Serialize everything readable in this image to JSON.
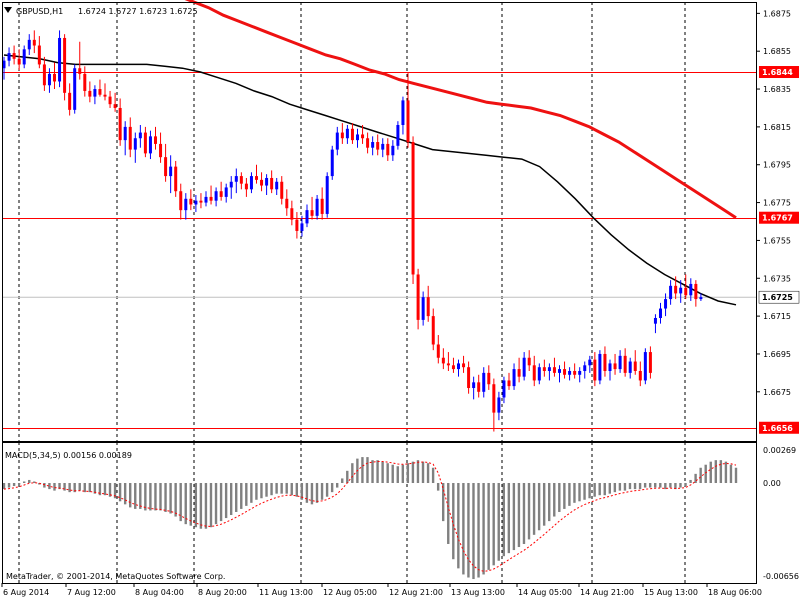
{
  "chart_data": {
    "type": "candlestick",
    "header": {
      "symbol": "GBPUSD,H1",
      "ohlc": "1.6724 1.6727 1.6723 1.6725"
    },
    "price_axis": {
      "ylim": [
        1.6649,
        1.6881
      ],
      "ticks": [
        "1.6875",
        "1.6855",
        "1.6835",
        "1.6815",
        "1.6795",
        "1.6775",
        "1.6755",
        "1.6735",
        "1.6715",
        "1.6695",
        "1.6675"
      ]
    },
    "time_axis": {
      "labels": [
        "6 Aug 2014",
        "7 Aug 12:00",
        "8 Aug 04:00",
        "8 Aug 20:00",
        "11 Aug 13:00",
        "12 Aug 05:00",
        "12 Aug 21:00",
        "13 Aug 13:00",
        "14 Aug 05:00",
        "14 Aug 21:00",
        "15 Aug 13:00",
        "18 Aug 06:00"
      ]
    },
    "horizontal_levels": [
      {
        "price": 1.6844,
        "label": "1.6844",
        "color": "#ff0000"
      },
      {
        "price": 1.6767,
        "label": "1.6767",
        "color": "#ff0000"
      },
      {
        "price": 1.6656,
        "label": "1.6656",
        "color": "#ff0000"
      }
    ],
    "current_price": {
      "price": 1.6725,
      "label": "1.6725"
    },
    "colors": {
      "bull": "#0000ff",
      "bear": "#ff0000",
      "slow_ma": "#ee1111",
      "fast_ma": "#000000",
      "macd_hist": "#808080",
      "macd_signal": "#ff0000"
    },
    "candles": [
      [
        1.6846,
        1.6852,
        1.684,
        1.685
      ],
      [
        1.685,
        1.6857,
        1.6847,
        1.6854
      ],
      [
        1.6854,
        1.6858,
        1.6848,
        1.6851
      ],
      [
        1.6851,
        1.6856,
        1.6845,
        1.6848
      ],
      [
        1.6848,
        1.6858,
        1.6846,
        1.6856
      ],
      [
        1.6856,
        1.6864,
        1.6853,
        1.6861
      ],
      [
        1.6861,
        1.6866,
        1.6854,
        1.6858
      ],
      [
        1.6858,
        1.6863,
        1.6846,
        1.6848
      ],
      [
        1.6848,
        1.6852,
        1.6834,
        1.6837
      ],
      [
        1.6837,
        1.6846,
        1.6833,
        1.6843
      ],
      [
        1.6843,
        1.6849,
        1.6835,
        1.6839
      ],
      [
        1.6839,
        1.6866,
        1.6836,
        1.6862
      ],
      [
        1.6862,
        1.6864,
        1.6829,
        1.6833
      ],
      [
        1.6833,
        1.6838,
        1.6821,
        1.6824
      ],
      [
        1.6824,
        1.6848,
        1.6822,
        1.6846
      ],
      [
        1.6846,
        1.686,
        1.684,
        1.6843
      ],
      [
        1.6843,
        1.6847,
        1.6831,
        1.6834
      ],
      [
        1.6834,
        1.6839,
        1.6828,
        1.6831
      ],
      [
        1.6831,
        1.6837,
        1.6827,
        1.6835
      ],
      [
        1.6835,
        1.684,
        1.6831,
        1.6832
      ],
      [
        1.6832,
        1.6838,
        1.6829,
        1.6831
      ],
      [
        1.6831,
        1.6834,
        1.6825,
        1.6827
      ],
      [
        1.6827,
        1.6833,
        1.6823,
        1.6825
      ],
      [
        1.6825,
        1.683,
        1.6805,
        1.6808
      ],
      [
        1.6808,
        1.6818,
        1.68,
        1.6815
      ],
      [
        1.6815,
        1.682,
        1.6799,
        1.6803
      ],
      [
        1.6803,
        1.6812,
        1.6796,
        1.6809
      ],
      [
        1.6809,
        1.6816,
        1.6804,
        1.6812
      ],
      [
        1.6812,
        1.6815,
        1.6799,
        1.6801
      ],
      [
        1.6801,
        1.6813,
        1.6798,
        1.681
      ],
      [
        1.681,
        1.6815,
        1.6803,
        1.6806
      ],
      [
        1.6806,
        1.6812,
        1.6796,
        1.6799
      ],
      [
        1.6799,
        1.6806,
        1.6786,
        1.6789
      ],
      [
        1.6789,
        1.68,
        1.678,
        1.6794
      ],
      [
        1.6794,
        1.6797,
        1.6778,
        1.6781
      ],
      [
        1.6781,
        1.6785,
        1.6766,
        1.6771
      ],
      [
        1.6771,
        1.678,
        1.6766,
        1.6777
      ],
      [
        1.6777,
        1.6782,
        1.6771,
        1.6774
      ],
      [
        1.6774,
        1.6779,
        1.677,
        1.6776
      ],
      [
        1.6776,
        1.678,
        1.6772,
        1.6775
      ],
      [
        1.6775,
        1.6781,
        1.6773,
        1.6778
      ],
      [
        1.6778,
        1.6784,
        1.6774,
        1.6776
      ],
      [
        1.6776,
        1.6783,
        1.6773,
        1.6781
      ],
      [
        1.6781,
        1.6786,
        1.6776,
        1.6778
      ],
      [
        1.6778,
        1.6785,
        1.6775,
        1.6783
      ],
      [
        1.6783,
        1.6789,
        1.6777,
        1.6786
      ],
      [
        1.6786,
        1.6793,
        1.678,
        1.6789
      ],
      [
        1.6789,
        1.6791,
        1.6782,
        1.6785
      ],
      [
        1.6785,
        1.6788,
        1.6778,
        1.6782
      ],
      [
        1.6782,
        1.6791,
        1.678,
        1.6789
      ],
      [
        1.6789,
        1.6795,
        1.6785,
        1.6787
      ],
      [
        1.6787,
        1.6791,
        1.6781,
        1.6784
      ],
      [
        1.6784,
        1.679,
        1.6779,
        1.6788
      ],
      [
        1.6788,
        1.6792,
        1.678,
        1.6782
      ],
      [
        1.6782,
        1.6788,
        1.6779,
        1.6786
      ],
      [
        1.6786,
        1.6789,
        1.6774,
        1.6777
      ],
      [
        1.6777,
        1.6782,
        1.6768,
        1.6772
      ],
      [
        1.6772,
        1.6776,
        1.6763,
        1.6766
      ],
      [
        1.6766,
        1.677,
        1.6756,
        1.676
      ],
      [
        1.676,
        1.6768,
        1.6757,
        1.6764
      ],
      [
        1.6764,
        1.6774,
        1.6762,
        1.6771
      ],
      [
        1.6771,
        1.6778,
        1.6766,
        1.6768
      ],
      [
        1.6768,
        1.6779,
        1.6766,
        1.6777
      ],
      [
        1.6777,
        1.6783,
        1.6766,
        1.6769
      ],
      [
        1.6769,
        1.6791,
        1.6767,
        1.6789
      ],
      [
        1.6789,
        1.6805,
        1.6787,
        1.6803
      ],
      [
        1.6803,
        1.6815,
        1.68,
        1.6812
      ],
      [
        1.6812,
        1.6817,
        1.6806,
        1.6809
      ],
      [
        1.6809,
        1.6816,
        1.6806,
        1.6814
      ],
      [
        1.6814,
        1.6817,
        1.6806,
        1.6808
      ],
      [
        1.6808,
        1.6814,
        1.6804,
        1.6811
      ],
      [
        1.6811,
        1.6816,
        1.6806,
        1.6809
      ],
      [
        1.6809,
        1.6812,
        1.6801,
        1.6804
      ],
      [
        1.6804,
        1.681,
        1.68,
        1.6807
      ],
      [
        1.6807,
        1.6811,
        1.68,
        1.6803
      ],
      [
        1.6803,
        1.6809,
        1.6799,
        1.6806
      ],
      [
        1.6806,
        1.6809,
        1.6797,
        1.68
      ],
      [
        1.68,
        1.6808,
        1.6797,
        1.6805
      ],
      [
        1.6805,
        1.6818,
        1.6803,
        1.6816
      ],
      [
        1.6816,
        1.6831,
        1.6811,
        1.6829
      ],
      [
        1.6829,
        1.6844,
        1.6804,
        1.6807
      ],
      [
        1.6807,
        1.681,
        1.6732,
        1.6737
      ],
      [
        1.6737,
        1.674,
        1.6708,
        1.6713
      ],
      [
        1.6713,
        1.6728,
        1.671,
        1.6725
      ],
      [
        1.6725,
        1.6731,
        1.6712,
        1.6715
      ],
      [
        1.6715,
        1.6719,
        1.6697,
        1.67
      ],
      [
        1.67,
        1.6705,
        1.669,
        1.6693
      ],
      [
        1.6693,
        1.6698,
        1.6687,
        1.669
      ],
      [
        1.669,
        1.6696,
        1.6686,
        1.6689
      ],
      [
        1.6689,
        1.6693,
        1.6685,
        1.6687
      ],
      [
        1.6687,
        1.6692,
        1.6683,
        1.669
      ],
      [
        1.669,
        1.6694,
        1.6685,
        1.6688
      ],
      [
        1.6688,
        1.6691,
        1.6674,
        1.6677
      ],
      [
        1.6677,
        1.6683,
        1.6671,
        1.668
      ],
      [
        1.668,
        1.6684,
        1.6672,
        1.6675
      ],
      [
        1.6675,
        1.6688,
        1.6672,
        1.6685
      ],
      [
        1.6685,
        1.6689,
        1.6676,
        1.6679
      ],
      [
        1.6679,
        1.6682,
        1.6654,
        1.6664
      ],
      [
        1.6664,
        1.6675,
        1.666,
        1.6672
      ],
      [
        1.6672,
        1.6683,
        1.6669,
        1.6681
      ],
      [
        1.6681,
        1.6685,
        1.6676,
        1.6678
      ],
      [
        1.6678,
        1.669,
        1.6676,
        1.6687
      ],
      [
        1.6687,
        1.6693,
        1.668,
        1.6683
      ],
      [
        1.6683,
        1.6696,
        1.6681,
        1.6693
      ],
      [
        1.6693,
        1.6697,
        1.6686,
        1.6689
      ],
      [
        1.6689,
        1.6694,
        1.6678,
        1.6681
      ],
      [
        1.6681,
        1.669,
        1.6679,
        1.6688
      ],
      [
        1.6688,
        1.6692,
        1.6683,
        1.6686
      ],
      [
        1.6686,
        1.669,
        1.6681,
        1.6688
      ],
      [
        1.6688,
        1.6693,
        1.6683,
        1.6685
      ],
      [
        1.6685,
        1.6689,
        1.668,
        1.6687
      ],
      [
        1.6687,
        1.6691,
        1.6682,
        1.6684
      ],
      [
        1.6684,
        1.6688,
        1.6681,
        1.6686
      ],
      [
        1.6686,
        1.669,
        1.6682,
        1.6684
      ],
      [
        1.6684,
        1.6688,
        1.668,
        1.6686
      ],
      [
        1.6686,
        1.6691,
        1.6682,
        1.6689
      ],
      [
        1.6689,
        1.6694,
        1.6685,
        1.6692
      ],
      [
        1.6692,
        1.6696,
        1.6678,
        1.6681
      ],
      [
        1.6681,
        1.6697,
        1.6679,
        1.6695
      ],
      [
        1.6695,
        1.6699,
        1.6683,
        1.6686
      ],
      [
        1.6686,
        1.6692,
        1.6681,
        1.669
      ],
      [
        1.669,
        1.6695,
        1.6684,
        1.6687
      ],
      [
        1.6687,
        1.6697,
        1.6685,
        1.6694
      ],
      [
        1.6694,
        1.6698,
        1.6683,
        1.6685
      ],
      [
        1.6685,
        1.6693,
        1.6682,
        1.6691
      ],
      [
        1.6691,
        1.6697,
        1.6684,
        1.6686
      ],
      [
        1.6686,
        1.6691,
        1.6678,
        1.6681
      ],
      [
        1.6681,
        1.6698,
        1.6679,
        1.6696
      ],
      [
        1.6696,
        1.6699,
        1.6682,
        1.6685
      ],
      [
        1.6711,
        1.6716,
        1.6706,
        1.6714
      ],
      [
        1.6714,
        1.6722,
        1.6711,
        1.6719
      ],
      [
        1.6719,
        1.6727,
        1.6715,
        1.6724
      ],
      [
        1.6724,
        1.6734,
        1.6721,
        1.6731
      ],
      [
        1.6731,
        1.6736,
        1.6724,
        1.6727
      ],
      [
        1.6727,
        1.6734,
        1.6722,
        1.673
      ],
      [
        1.673,
        1.6737,
        1.6724,
        1.6726
      ],
      [
        1.6726,
        1.6735,
        1.6723,
        1.6732
      ],
      [
        1.6732,
        1.6734,
        1.672,
        1.6724
      ],
      [
        1.6724,
        1.6727,
        1.6723,
        1.6725
      ]
    ],
    "ma_slow": [
      1.6889,
      1.6887,
      1.6884,
      1.6881,
      1.6878,
      1.6874,
      1.6871,
      1.6868,
      1.6865,
      1.6862,
      1.6859,
      1.6856,
      1.6853,
      1.6851,
      1.6848,
      1.6845,
      1.6843,
      1.684,
      1.6838,
      1.6836,
      1.6834,
      1.6832,
      1.683,
      1.6828,
      1.6827,
      1.6826,
      1.6825,
      1.6823,
      1.6821,
      1.6818,
      1.6815,
      1.6811,
      1.6807,
      1.6802,
      1.6797,
      1.6792,
      1.6787,
      1.6782,
      1.6777,
      1.6772,
      1.6767
    ],
    "ma_fast": [
      1.6853,
      1.6852,
      1.6851,
      1.6849,
      1.6848,
      1.6848,
      1.6848,
      1.6848,
      1.6848,
      1.6847,
      1.6846,
      1.6844,
      1.6841,
      1.6838,
      1.6834,
      1.6831,
      1.6827,
      1.6824,
      1.6821,
      1.6818,
      1.6815,
      1.6812,
      1.6809,
      1.6806,
      1.6803,
      1.6802,
      1.6801,
      1.68,
      1.6799,
      1.6798,
      1.6794,
      1.6786,
      1.6777,
      1.6767,
      1.6758,
      1.675,
      1.6743,
      1.6737,
      1.6732,
      1.6727,
      1.6723,
      1.6721
    ],
    "macd": {
      "label": "MACD(5,34,5) 0.00156 0.00189",
      "ylim": [
        -0.00656,
        0.00269
      ],
      "ticks": [
        "0.00269",
        "0.00",
        "-0.00656"
      ],
      "hist": [
        -0.0004,
        -0.0003,
        -0.0002,
        -0.0001,
        0.0001,
        0.0002,
        0.0001,
        -0.0001,
        -0.0003,
        -0.0004,
        -0.0005,
        -0.0004,
        -0.0005,
        -0.0006,
        -0.0006,
        -0.0005,
        -0.0006,
        -0.0006,
        -0.0007,
        -0.0008,
        -0.0008,
        -0.0009,
        -0.001,
        -0.0012,
        -0.0014,
        -0.0016,
        -0.0017,
        -0.0017,
        -0.0018,
        -0.0018,
        -0.0018,
        -0.0018,
        -0.0019,
        -0.002,
        -0.0022,
        -0.0025,
        -0.0027,
        -0.0028,
        -0.0029,
        -0.003,
        -0.003,
        -0.0029,
        -0.0027,
        -0.0025,
        -0.0023,
        -0.0021,
        -0.0019,
        -0.0017,
        -0.0015,
        -0.0013,
        -0.0011,
        -0.001,
        -0.0009,
        -0.0008,
        -0.0007,
        -0.0007,
        -0.0007,
        -0.0008,
        -0.0009,
        -0.0011,
        -0.0013,
        -0.0014,
        -0.0013,
        -0.0011,
        -0.0009,
        -0.0006,
        -0.0003,
        0.0003,
        0.0008,
        0.0013,
        0.0016,
        0.0017,
        0.0017,
        0.0015,
        0.0015,
        0.0014,
        0.0013,
        0.0012,
        0.0011,
        0.0012,
        0.0013,
        0.0014,
        0.0015,
        0.0014,
        0.0013,
        0.001,
        -0.0005,
        -0.0025,
        -0.004,
        -0.005,
        -0.0056,
        -0.006,
        -0.0062,
        -0.0063,
        -0.0062,
        -0.006,
        -0.0057,
        -0.0054,
        -0.0051,
        -0.0048,
        -0.0046,
        -0.0044,
        -0.0042,
        -0.004,
        -0.0037,
        -0.0034,
        -0.0031,
        -0.0028,
        -0.0025,
        -0.0022,
        -0.0019,
        -0.0017,
        -0.0015,
        -0.0013,
        -0.0012,
        -0.0011,
        -0.001,
        -0.0009,
        -0.0008,
        -0.0008,
        -0.0007,
        -0.0006,
        -0.0005,
        -0.0005,
        -0.0004,
        -0.0004,
        -0.0004,
        -0.0003,
        -0.0003,
        -0.0003,
        -0.0003,
        -0.0004,
        -0.0003,
        -0.0004,
        -0.0003,
        -0.0002,
        0.0002,
        0.0006,
        0.001,
        0.0012,
        0.0014,
        0.0015,
        0.0015,
        0.0014,
        0.0012,
        0.001
      ]
    },
    "footer": "MetaTrader, © 2001-2014, MetaQuotes Software Corp."
  }
}
